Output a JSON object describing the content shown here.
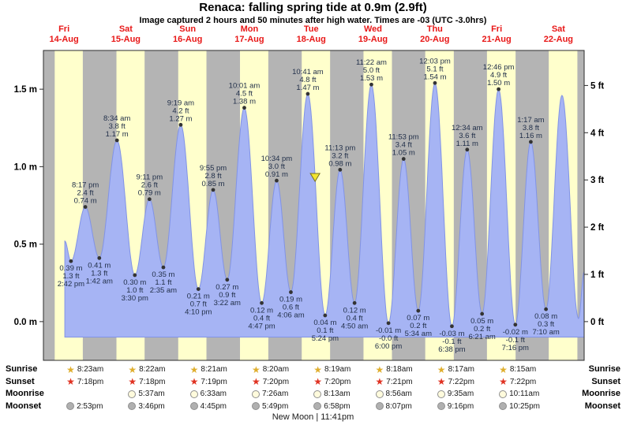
{
  "title": "Renaca: falling  spring tide at 0.9m (2.9ft)",
  "subtitle": "Image captured 2 hours and 50 minutes after high water. Times are -03 (UTC -3.0hrs)",
  "colors": {
    "day_band": "#ffffcc",
    "night_band": "#b4b4b4",
    "curve_fill": "#a6b4f4",
    "curve_edge": "#8193e6",
    "day_label": "#e81717",
    "tide_text": "#22304a",
    "tide_dot": "#333333",
    "marker_fill": "#f2e530",
    "marker_edge": "#77701f",
    "axis_text": "#000000",
    "border": "#2b2b2b",
    "sunrise_icon": "#dfae2e",
    "sunset_icon": "#e03222",
    "moonrise_icon": "#fffbdd",
    "moonset_icon": "#b0b0b0",
    "circle_edge": "#8f8f8f"
  },
  "chart_data": {
    "type": "area",
    "title": "Renaca: falling  spring tide at 0.9m (2.9ft)",
    "ylim_m": [
      -0.25,
      1.75
    ],
    "time_range_hours": [
      4,
      214
    ],
    "baseline_m": -0.1,
    "grid": false,
    "days": [
      {
        "name": "Fri",
        "date": "14-Aug"
      },
      {
        "name": "Sat",
        "date": "15-Aug"
      },
      {
        "name": "Sun",
        "date": "16-Aug"
      },
      {
        "name": "Mon",
        "date": "17-Aug"
      },
      {
        "name": "Tue",
        "date": "18-Aug"
      },
      {
        "name": "Wed",
        "date": "19-Aug"
      },
      {
        "name": "Thu",
        "date": "20-Aug"
      },
      {
        "name": "Fri",
        "date": "21-Aug"
      },
      {
        "name": "Sat",
        "date": "22-Aug"
      }
    ],
    "m_ticks": [
      {
        "v": 1.5,
        "label": "1.5 m"
      },
      {
        "v": 1.0,
        "label": "1.0 m"
      },
      {
        "v": 0.5,
        "label": "0.5 m"
      },
      {
        "v": 0.0,
        "label": "0.0 m"
      }
    ],
    "ft_ticks": [
      {
        "ft": 5,
        "label": "5 ft"
      },
      {
        "ft": 4,
        "label": "4 ft"
      },
      {
        "ft": 3,
        "label": "3 ft"
      },
      {
        "ft": 2,
        "label": "2 ft"
      },
      {
        "ft": 1,
        "label": "1 ft"
      },
      {
        "ft": 0,
        "label": "0 ft"
      }
    ],
    "current_marker": {
      "t": 109.5,
      "m": 0.9
    },
    "curve_edge_points": [
      {
        "t": 12.3,
        "m": 0.52
      },
      {
        "t": 205.4,
        "m": 1.46
      },
      {
        "t": 211.8,
        "m": 0.02
      },
      {
        "t": 214.0,
        "m": 0.32
      }
    ],
    "tides": [
      {
        "t": 14.7,
        "m": 0.39,
        "type": "low",
        "time": "2:42 pm",
        "ft": "1.3 ft",
        "mlabel": "0.39 m"
      },
      {
        "t": 20.28,
        "m": 0.74,
        "type": "high",
        "time": "8:17 pm",
        "ft": "2.4 ft",
        "mlabel": "0.74 m"
      },
      {
        "t": 25.7,
        "m": 0.41,
        "type": "low",
        "time": "1:42 am",
        "ft": "1.3 ft",
        "mlabel": "0.41 m"
      },
      {
        "t": 32.57,
        "m": 1.17,
        "type": "high",
        "time": "8:34 am",
        "ft": "3.8 ft",
        "mlabel": "1.17 m"
      },
      {
        "t": 39.5,
        "m": 0.3,
        "type": "low",
        "time": "3:30 pm",
        "ft": "1.0 ft",
        "mlabel": "0.30 m"
      },
      {
        "t": 45.18,
        "m": 0.79,
        "type": "high",
        "time": "9:11 pm",
        "ft": "2.6 ft",
        "mlabel": "0.79 m"
      },
      {
        "t": 50.58,
        "m": 0.35,
        "type": "low",
        "time": "2:35 am",
        "ft": "1.1 ft",
        "mlabel": "0.35 m"
      },
      {
        "t": 57.32,
        "m": 1.27,
        "type": "high",
        "time": "9:19 am",
        "ft": "4.2 ft",
        "mlabel": "1.27 m"
      },
      {
        "t": 64.17,
        "m": 0.21,
        "type": "low",
        "time": "4:10 pm",
        "ft": "0.7 ft",
        "mlabel": "0.21 m"
      },
      {
        "t": 69.92,
        "m": 0.85,
        "type": "high",
        "time": "9:55 pm",
        "ft": "2.8 ft",
        "mlabel": "0.85 m"
      },
      {
        "t": 75.37,
        "m": 0.27,
        "type": "low",
        "time": "3:22 am",
        "ft": "0.9 ft",
        "mlabel": "0.27 m"
      },
      {
        "t": 82.02,
        "m": 1.38,
        "type": "high",
        "time": "10:01 am",
        "ft": "4.5 ft",
        "mlabel": "1.38 m"
      },
      {
        "t": 88.78,
        "m": 0.12,
        "type": "low",
        "time": "4:47 pm",
        "ft": "0.4 ft",
        "mlabel": "0.12 m"
      },
      {
        "t": 94.57,
        "m": 0.91,
        "type": "high",
        "time": "10:34 pm",
        "ft": "3.0 ft",
        "mlabel": "0.91 m"
      },
      {
        "t": 100.1,
        "m": 0.19,
        "type": "low",
        "time": "4:06 am",
        "ft": "0.6 ft",
        "mlabel": "0.19 m"
      },
      {
        "t": 106.68,
        "m": 1.47,
        "type": "high",
        "time": "10:41 am",
        "ft": "4.8 ft",
        "mlabel": "1.47 m"
      },
      {
        "t": 113.4,
        "m": 0.04,
        "type": "low",
        "time": "5:24 pm",
        "ft": "0.1 ft",
        "mlabel": "0.04 m"
      },
      {
        "t": 119.22,
        "m": 0.98,
        "type": "high",
        "time": "11:13 pm",
        "ft": "3.2 ft",
        "mlabel": "0.98 m"
      },
      {
        "t": 124.83,
        "m": 0.12,
        "type": "low",
        "time": "4:50 am",
        "ft": "0.4 ft",
        "mlabel": "0.12 m"
      },
      {
        "t": 131.37,
        "m": 1.53,
        "type": "high",
        "time": "11:22 am",
        "ft": "5.0 ft",
        "mlabel": "1.53 m"
      },
      {
        "t": 138.0,
        "m": -0.01,
        "type": "low",
        "time": "6:00 pm",
        "ft": "-0.0 ft",
        "mlabel": "-0.01 m"
      },
      {
        "t": 143.88,
        "m": 1.05,
        "type": "high",
        "time": "11:53 pm",
        "ft": "3.4 ft",
        "mlabel": "1.05 m"
      },
      {
        "t": 149.57,
        "m": 0.07,
        "type": "low",
        "time": "5:34 am",
        "ft": "0.2 ft",
        "mlabel": "0.07 m"
      },
      {
        "t": 156.05,
        "m": 1.54,
        "type": "high",
        "time": "12:03 pm",
        "ft": "5.1 ft",
        "mlabel": "1.54 m"
      },
      {
        "t": 162.63,
        "m": -0.03,
        "type": "low",
        "time": "6:38 pm",
        "ft": "-0.1 ft",
        "mlabel": "-0.03 m"
      },
      {
        "t": 168.57,
        "m": 1.11,
        "type": "high",
        "time": "12:34 am",
        "ft": "3.6 ft",
        "mlabel": "1.11 m"
      },
      {
        "t": 174.35,
        "m": 0.05,
        "type": "low",
        "time": "6:21 am",
        "ft": "0.2 ft",
        "mlabel": "0.05 m"
      },
      {
        "t": 180.77,
        "m": 1.5,
        "type": "high",
        "time": "12:46 pm",
        "ft": "4.9 ft",
        "mlabel": "1.50 m"
      },
      {
        "t": 187.27,
        "m": -0.02,
        "type": "low",
        "time": "7:16 pm",
        "ft": "-0.1 ft",
        "mlabel": "-0.02 m"
      },
      {
        "t": 193.28,
        "m": 1.16,
        "type": "high",
        "time": "1:17 am",
        "ft": "3.8 ft",
        "mlabel": "1.16 m"
      },
      {
        "t": 199.17,
        "m": 0.08,
        "type": "low",
        "time": "7:10 am",
        "ft": "0.3 ft",
        "mlabel": "0.08 m"
      }
    ]
  },
  "astro": {
    "rows": [
      {
        "label": "Sunrise",
        "key": "sunrise",
        "icon": "star",
        "start_col": 0,
        "times": [
          "8:23am",
          "8:22am",
          "8:21am",
          "8:20am",
          "8:19am",
          "8:18am",
          "8:17am",
          "8:15am"
        ]
      },
      {
        "label": "Sunset",
        "key": "sunset",
        "icon": "star",
        "start_col": 0,
        "times": [
          "7:18pm",
          "7:18pm",
          "7:19pm",
          "7:20pm",
          "7:20pm",
          "7:21pm",
          "7:22pm",
          "7:22pm"
        ]
      },
      {
        "label": "Moonrise",
        "key": "moonrise",
        "icon": "circle",
        "start_col": 1,
        "times": [
          "5:37am",
          "6:33am",
          "7:26am",
          "8:13am",
          "8:56am",
          "9:35am",
          "10:11am"
        ]
      },
      {
        "label": "Moonset",
        "key": "moonset",
        "icon": "circle",
        "start_col": 0,
        "times": [
          "2:53pm",
          "3:46pm",
          "4:45pm",
          "5:49pm",
          "6:58pm",
          "8:07pm",
          "9:16pm",
          "10:25pm"
        ]
      }
    ],
    "moon_event": "New Moon | 11:41pm"
  }
}
